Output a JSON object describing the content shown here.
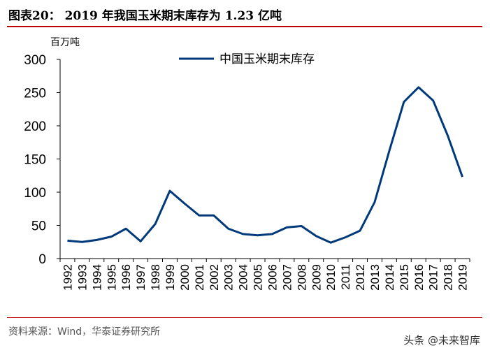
{
  "title": "图表20：  2019 年我国玉米期末库存为 1.23 亿吨",
  "source": "资料来源：Wind，华泰证券研究所",
  "watermark": "头条 @未来智库",
  "chart_data": {
    "type": "line",
    "ylabel": "百万吨",
    "ylim": [
      0,
      300
    ],
    "yticks": [
      0,
      50,
      100,
      150,
      200,
      250,
      300
    ],
    "legend_position": "top-center",
    "color": "#003a7a",
    "categories": [
      "1992",
      "1993",
      "1994",
      "1995",
      "1996",
      "1997",
      "1998",
      "1999",
      "2000",
      "2001",
      "2002",
      "2003",
      "2004",
      "2005",
      "2006",
      "2007",
      "2008",
      "2009",
      "2010",
      "2011",
      "2012",
      "2013",
      "2014",
      "2015",
      "2016",
      "2017",
      "2018",
      "2019"
    ],
    "series": [
      {
        "name": "中国玉米期末库存",
        "values": [
          27,
          25,
          28,
          33,
          45,
          26,
          52,
          102,
          83,
          65,
          65,
          45,
          37,
          35,
          37,
          47,
          49,
          34,
          24,
          32,
          42,
          85,
          162,
          236,
          258,
          238,
          185,
          123
        ]
      }
    ]
  }
}
